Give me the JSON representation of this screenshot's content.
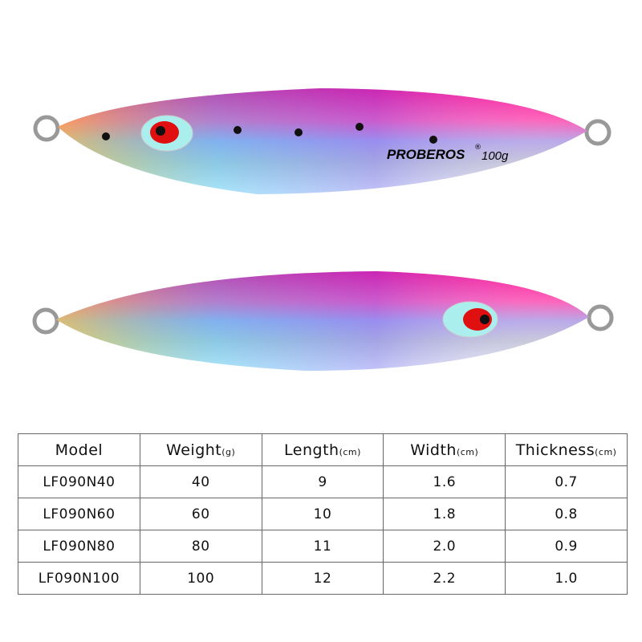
{
  "lure": {
    "brand": "PROBEROS",
    "registered": "®",
    "weight": "100g"
  },
  "table": {
    "header": [
      {
        "name": "Model"
      },
      {
        "name": "Weight",
        "unit": "(g)"
      },
      {
        "name": "Length",
        "unit": "(cm)"
      },
      {
        "name": "Width",
        "unit": "(cm)"
      },
      {
        "name": "Thickness",
        "unit": "(cm)"
      }
    ],
    "rows": [
      [
        "LF090N40",
        "40",
        "9",
        "1.6",
        "0.7"
      ],
      [
        "LF090N60",
        "60",
        "10",
        "1.8",
        "0.8"
      ],
      [
        "LF090N80",
        "80",
        "11",
        "2.0",
        "0.9"
      ],
      [
        "LF090N100",
        "100",
        "12",
        "2.2",
        "1.0"
      ]
    ]
  }
}
